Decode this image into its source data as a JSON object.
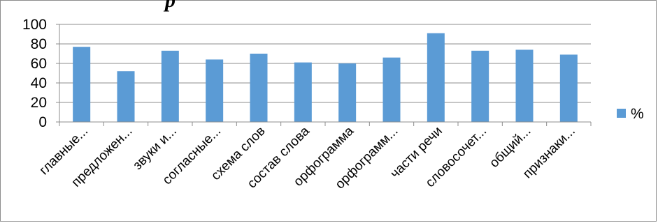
{
  "header_fragment": "р",
  "chart_data": {
    "type": "bar",
    "categories": [
      "главные...",
      "предложен...",
      "звуки и...",
      "согласные...",
      "схема слов",
      "состав слова",
      "орфограмма",
      "орфограмм...",
      "части речи",
      "словосочет...",
      "общий...",
      "признаки..."
    ],
    "series": [
      {
        "name": "%",
        "values": [
          77,
          52,
          73,
          64,
          70,
          61,
          60,
          66,
          91,
          73,
          74,
          69
        ],
        "color": "#5b9bd5"
      }
    ],
    "yticks": [
      "0",
      "20",
      "40",
      "60",
      "80",
      "100"
    ],
    "ylim": [
      0,
      100
    ],
    "grid": true,
    "legend_position": "right",
    "xlabel": "",
    "ylabel": ""
  }
}
